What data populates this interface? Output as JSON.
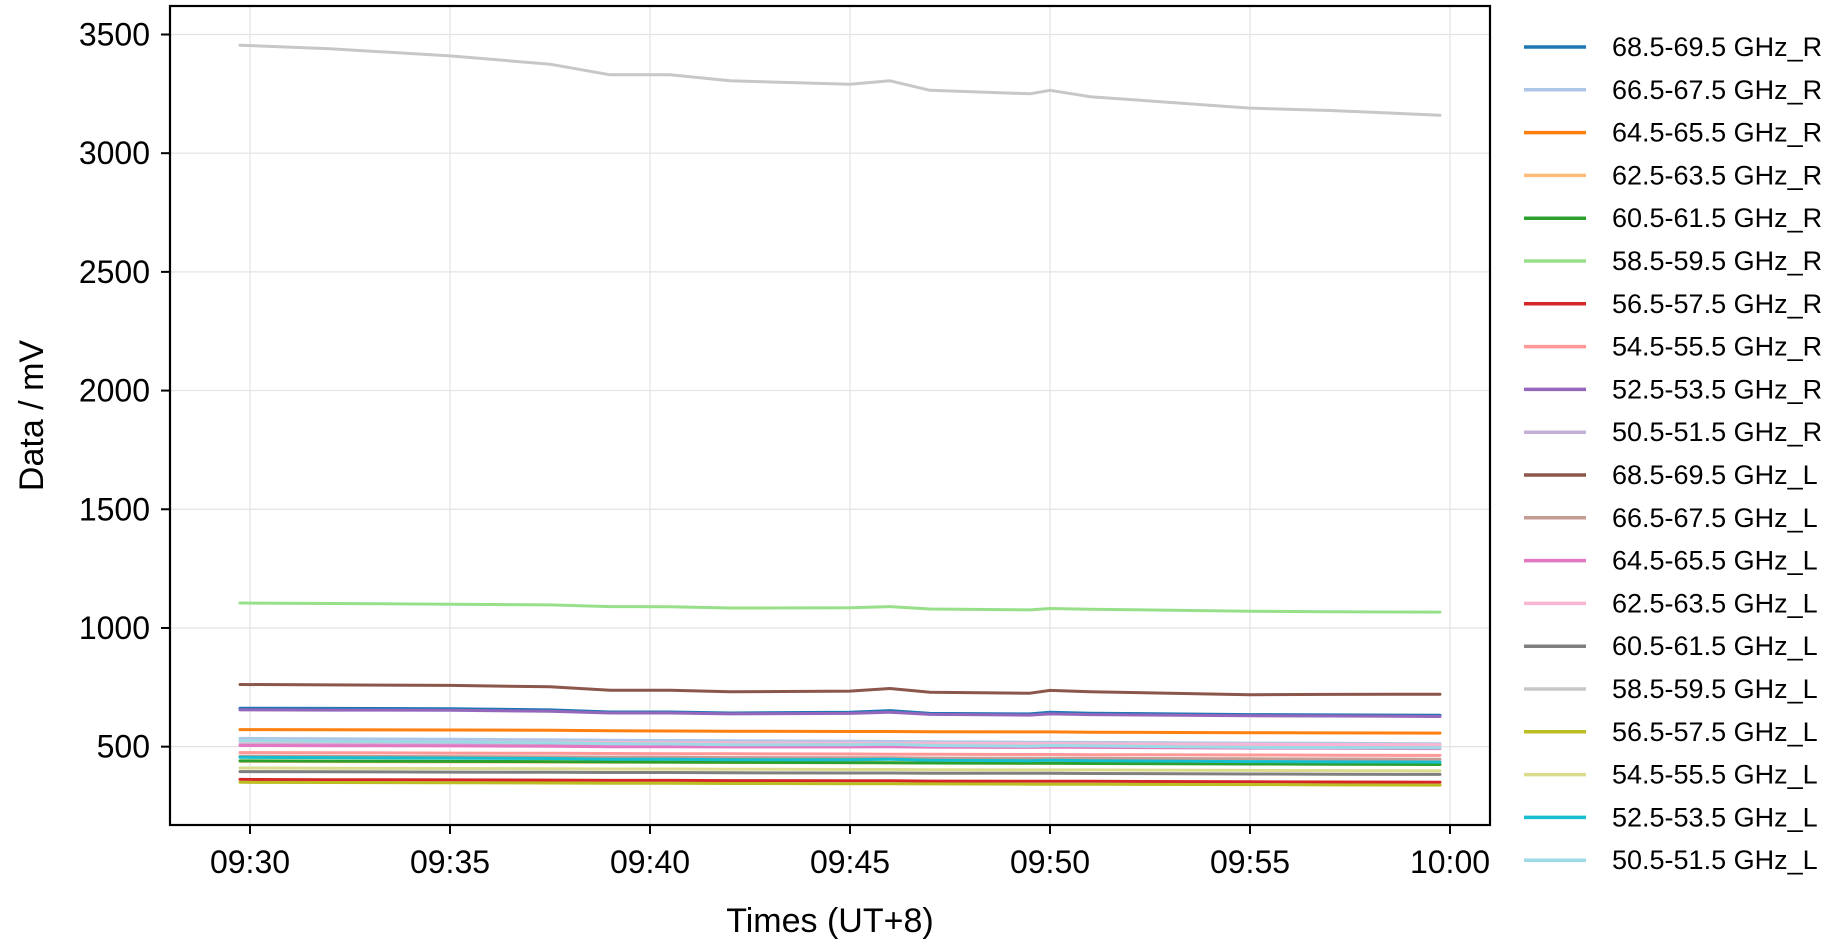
{
  "chart_data": {
    "type": "line",
    "xlabel": "Times (UT+8)",
    "ylabel": "Data / mV",
    "x_unit": "time",
    "x_range": [
      "09:28",
      "10:01"
    ],
    "ylim": [
      170,
      3620
    ],
    "x_ticks": [
      "09:30",
      "09:35",
      "09:40",
      "09:45",
      "09:50",
      "09:55",
      "10:00"
    ],
    "y_ticks": [
      500,
      1000,
      1500,
      2000,
      2500,
      3000,
      3500
    ],
    "grid": true,
    "legend_position": "outside-right",
    "x": [
      "09:29:45",
      "09:32:00",
      "09:35:00",
      "09:37:30",
      "09:39:00",
      "09:40:30",
      "09:42:00",
      "09:45:00",
      "09:46:00",
      "09:47:00",
      "09:49:30",
      "09:50:00",
      "09:51:00",
      "09:55:00",
      "09:57:00",
      "09:59:45"
    ],
    "series": [
      {
        "name": "68.5-69.5 GHz_R",
        "color": "#1f77b4",
        "values": [
          662,
          661,
          660,
          655,
          646,
          646,
          642,
          645,
          652,
          640,
          638,
          645,
          641,
          635,
          634,
          632
        ]
      },
      {
        "name": "66.5-67.5 GHz_R",
        "color": "#aec7e8",
        "values": [
          535,
          533,
          531,
          529,
          527,
          526,
          525,
          523,
          522,
          521,
          519,
          519,
          518,
          515,
          514,
          512
        ]
      },
      {
        "name": "64.5-65.5 GHz_R",
        "color": "#ff7f0e",
        "values": [
          572,
          571,
          570,
          569,
          567,
          566,
          565,
          564,
          564,
          563,
          562,
          562,
          561,
          559,
          558,
          557
        ]
      },
      {
        "name": "62.5-63.5 GHz_R",
        "color": "#ffbb78",
        "values": [
          438,
          437,
          436,
          435,
          434,
          434,
          433,
          432,
          432,
          431,
          430,
          430,
          430,
          428,
          427,
          426
        ]
      },
      {
        "name": "60.5-61.5 GHz_R",
        "color": "#2ca02c",
        "values": [
          440,
          439,
          438,
          437,
          436,
          435,
          434,
          433,
          432,
          431,
          430,
          430,
          429,
          427,
          426,
          425
        ]
      },
      {
        "name": "58.5-59.5 GHz_R",
        "color": "#98df8a",
        "values": [
          1105,
          1103,
          1100,
          1097,
          1090,
          1089,
          1084,
          1085,
          1090,
          1080,
          1076,
          1082,
          1079,
          1070,
          1068,
          1067
        ]
      },
      {
        "name": "56.5-57.5 GHz_R",
        "color": "#d62728",
        "values": [
          362,
          361,
          360,
          359,
          358,
          358,
          357,
          356,
          356,
          355,
          354,
          354,
          354,
          352,
          351,
          350
        ]
      },
      {
        "name": "54.5-55.5 GHz_R",
        "color": "#ff9896",
        "values": [
          475,
          474,
          473,
          472,
          471,
          470,
          470,
          469,
          468,
          468,
          467,
          467,
          466,
          465,
          464,
          463
        ]
      },
      {
        "name": "52.5-53.5 GHz_R",
        "color": "#9467bd",
        "values": [
          655,
          654,
          653,
          649,
          642,
          642,
          638,
          640,
          645,
          636,
          633,
          638,
          635,
          630,
          629,
          627
        ]
      },
      {
        "name": "50.5-51.5 GHz_R",
        "color": "#c5b0d5",
        "values": [
          510,
          509,
          508,
          507,
          506,
          505,
          504,
          503,
          502,
          502,
          501,
          501,
          500,
          498,
          497,
          496
        ]
      },
      {
        "name": "68.5-69.5 GHz_L",
        "color": "#8c564b",
        "values": [
          762,
          760,
          758,
          752,
          738,
          738,
          731,
          734,
          745,
          729,
          725,
          737,
          731,
          719,
          720,
          721
        ]
      },
      {
        "name": "66.5-67.5 GHz_L",
        "color": "#c49c94",
        "values": [
          460,
          459,
          458,
          457,
          456,
          455,
          454,
          453,
          453,
          452,
          451,
          451,
          451,
          449,
          448,
          447
        ]
      },
      {
        "name": "64.5-65.5 GHz_L",
        "color": "#e377c2",
        "values": [
          505,
          504,
          503,
          502,
          500,
          500,
          499,
          499,
          500,
          498,
          497,
          498,
          497,
          494,
          493,
          492
        ]
      },
      {
        "name": "62.5-63.5 GHz_L",
        "color": "#f7b6d2",
        "values": [
          522,
          521,
          520,
          519,
          518,
          517,
          516,
          515,
          514,
          514,
          513,
          513,
          512,
          510,
          509,
          508
        ]
      },
      {
        "name": "60.5-61.5 GHz_L",
        "color": "#7f7f7f",
        "values": [
          395,
          394,
          393,
          392,
          391,
          391,
          390,
          389,
          389,
          388,
          388,
          388,
          387,
          385,
          384,
          383
        ]
      },
      {
        "name": "58.5-59.5 GHz_L",
        "color": "#c7c7c7",
        "values": [
          3455,
          3440,
          3410,
          3375,
          3330,
          3330,
          3305,
          3290,
          3305,
          3265,
          3250,
          3265,
          3238,
          3190,
          3180,
          3160
        ]
      },
      {
        "name": "56.5-57.5 GHz_L",
        "color": "#bcbd22",
        "values": [
          350,
          349,
          348,
          347,
          346,
          346,
          345,
          344,
          344,
          343,
          342,
          342,
          342,
          340,
          339,
          338
        ]
      },
      {
        "name": "54.5-55.5 GHz_L",
        "color": "#dbdb8d",
        "values": [
          410,
          409,
          408,
          407,
          406,
          406,
          405,
          404,
          404,
          403,
          402,
          402,
          402,
          400,
          399,
          398
        ]
      },
      {
        "name": "52.5-53.5 GHz_L",
        "color": "#17becf",
        "values": [
          455,
          454,
          452,
          450,
          447,
          447,
          445,
          445,
          447,
          443,
          441,
          443,
          441,
          437,
          436,
          435
        ]
      },
      {
        "name": "50.5-51.5 GHz_L",
        "color": "#9edae5",
        "values": [
          525,
          523,
          520,
          517,
          512,
          511,
          508,
          508,
          510,
          505,
          502,
          505,
          503,
          497,
          496,
          495
        ]
      }
    ]
  }
}
